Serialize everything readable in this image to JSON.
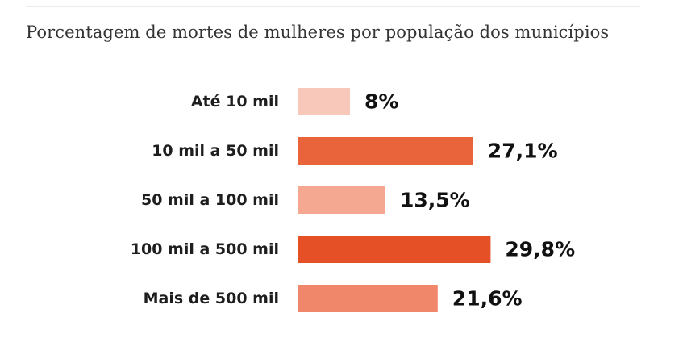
{
  "chart_data": {
    "type": "bar",
    "orientation": "horizontal",
    "title": "Porcentagem de mortes de mulheres por população dos municípios",
    "categories": [
      "Até 10 mil",
      "10 mil a 50 mil",
      "50 mil a 100 mil",
      "100 mil a 500 mil",
      "Mais de 500 mil"
    ],
    "values": [
      8,
      27.1,
      13.5,
      29.8,
      21.6
    ],
    "value_labels": [
      "8%",
      "27,1%",
      "13,5%",
      "29,8%",
      "21,6%"
    ],
    "unit": "%",
    "colors": [
      "#f8c9bb",
      "#e9643b",
      "#f5a891",
      "#e55026",
      "#f0876a"
    ],
    "xlabel": "",
    "ylabel": "",
    "grid": false,
    "legend": "none"
  }
}
